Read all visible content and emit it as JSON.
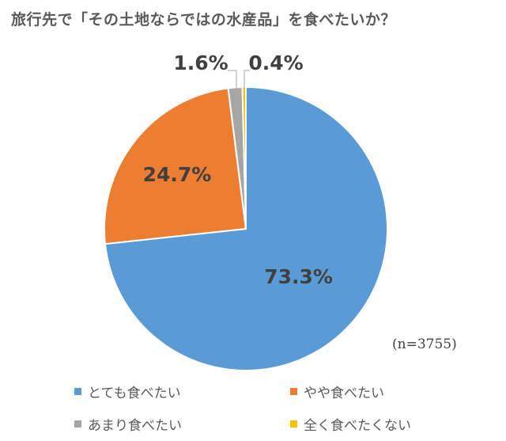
{
  "chart_data": {
    "type": "pie",
    "title": "旅行先で「その土地ならではの水産品」を食べたいか？",
    "note": "(n=3755)",
    "slices": [
      {
        "label": "とても食べたい",
        "value": 73.3,
        "display": "73.3%",
        "color": "#5B9BD5"
      },
      {
        "label": "やや食べたい",
        "value": 24.7,
        "display": "24.7%",
        "color": "#ED7D31"
      },
      {
        "label": "あまり食べたい",
        "value": 1.6,
        "display": "1.6%",
        "color": "#A5A5A5"
      },
      {
        "label": "全く食べたくない",
        "value": 0.4,
        "display": "0.4%",
        "color": "#FFC000"
      }
    ],
    "legend_position": "bottom"
  }
}
